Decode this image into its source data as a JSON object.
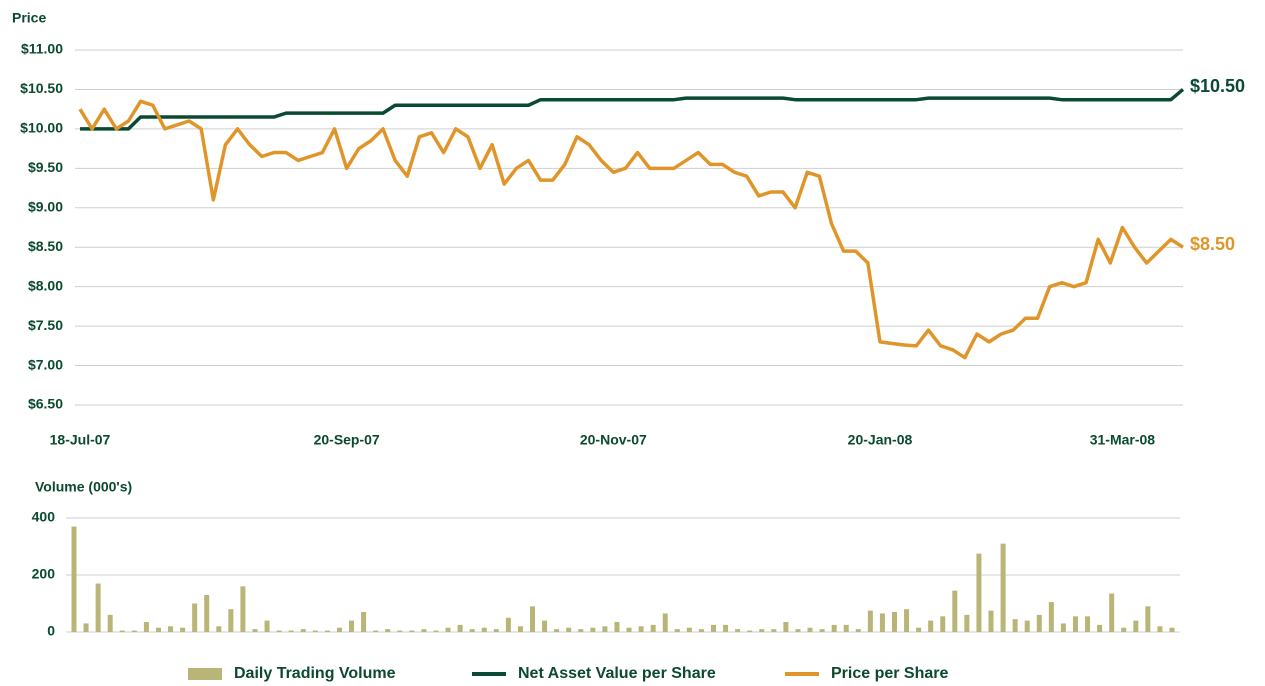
{
  "chart_data": [
    {
      "type": "line",
      "title": "Price",
      "categories": [
        "18-Jul-07",
        null,
        null,
        null,
        null,
        null,
        null,
        null,
        null,
        null,
        null,
        null,
        null,
        null,
        null,
        null,
        null,
        null,
        null,
        null,
        null,
        null,
        "20-Sep-07",
        null,
        null,
        null,
        null,
        null,
        null,
        null,
        null,
        null,
        null,
        null,
        null,
        null,
        null,
        null,
        null,
        null,
        null,
        null,
        null,
        null,
        "20-Nov-07",
        null,
        null,
        null,
        null,
        null,
        null,
        null,
        null,
        null,
        null,
        null,
        null,
        null,
        null,
        null,
        null,
        null,
        null,
        null,
        null,
        null,
        "20-Jan-08",
        null,
        null,
        null,
        null,
        null,
        null,
        null,
        null,
        null,
        null,
        null,
        null,
        null,
        null,
        null,
        null,
        null,
        null,
        null,
        "31-Mar-08",
        null,
        null,
        null,
        null,
        null
      ],
      "series": [
        {
          "name": "Net Asset Value per Share",
          "color": "#0b4a32",
          "end_label": "$10.50",
          "values": [
            10,
            10,
            10,
            10,
            10,
            10.15,
            10.15,
            10.15,
            10.15,
            10.15,
            10.15,
            10.15,
            10.15,
            10.15,
            10.15,
            10.15,
            10.15,
            10.2,
            10.2,
            10.2,
            10.2,
            10.2,
            10.2,
            10.2,
            10.2,
            10.2,
            10.3,
            10.3,
            10.3,
            10.3,
            10.3,
            10.3,
            10.3,
            10.3,
            10.3,
            10.3,
            10.3,
            10.3,
            10.37,
            10.37,
            10.37,
            10.37,
            10.37,
            10.37,
            10.37,
            10.37,
            10.37,
            10.37,
            10.37,
            10.37,
            10.39,
            10.39,
            10.39,
            10.39,
            10.39,
            10.39,
            10.39,
            10.39,
            10.39,
            10.37,
            10.37,
            10.37,
            10.37,
            10.37,
            10.37,
            10.37,
            10.37,
            10.37,
            10.37,
            10.37,
            10.39,
            10.39,
            10.39,
            10.39,
            10.39,
            10.39,
            10.39,
            10.39,
            10.39,
            10.39,
            10.39,
            10.37,
            10.37,
            10.37,
            10.37,
            10.37,
            10.37,
            10.37,
            10.37,
            10.37,
            10.37,
            10.5
          ]
        },
        {
          "name": "Price per Share",
          "color": "#e0952a",
          "end_label": "$8.50",
          "values": [
            10.25,
            10.0,
            10.25,
            10.0,
            10.1,
            10.35,
            10.3,
            10.0,
            10.05,
            10.1,
            10.0,
            9.1,
            9.8,
            10.0,
            9.8,
            9.65,
            9.7,
            9.7,
            9.6,
            9.65,
            9.7,
            10.0,
            9.5,
            9.75,
            9.85,
            10.0,
            9.6,
            9.4,
            9.9,
            9.95,
            9.7,
            10.0,
            9.9,
            9.5,
            9.8,
            9.3,
            9.5,
            9.6,
            9.35,
            9.35,
            9.55,
            9.9,
            9.8,
            9.6,
            9.45,
            9.5,
            9.7,
            9.5,
            9.5,
            9.5,
            9.6,
            9.7,
            9.55,
            9.55,
            9.45,
            9.4,
            9.15,
            9.2,
            9.2,
            9.0,
            9.45,
            9.4,
            8.8,
            8.45,
            8.45,
            8.3,
            7.3,
            7.28,
            7.26,
            7.25,
            7.45,
            7.25,
            7.2,
            7.1,
            7.4,
            7.3,
            7.4,
            7.45,
            7.6,
            7.6,
            8.0,
            8.05,
            8.0,
            8.05,
            8.6,
            8.3,
            8.75,
            8.5,
            8.3,
            8.45,
            8.6,
            8.5
          ]
        }
      ],
      "ylim": [
        6.5,
        11
      ],
      "yticks": [
        {
          "value": 6.5,
          "label": "$6.50"
        },
        {
          "value": 7,
          "label": "$7.00"
        },
        {
          "value": 7.5,
          "label": "$7.50"
        },
        {
          "value": 8,
          "label": "$8.00"
        },
        {
          "value": 8.5,
          "label": "$8.50"
        },
        {
          "value": 9,
          "label": "$9.00"
        },
        {
          "value": 9.5,
          "label": "$9.50"
        },
        {
          "value": 10,
          "label": "$10.00"
        },
        {
          "value": 10.5,
          "label": "$10.50"
        },
        {
          "value": 11,
          "label": "$11.00"
        }
      ],
      "grid": true
    },
    {
      "type": "bar",
      "title": "Volume (000's)",
      "series": [
        {
          "name": "Daily Trading Volume",
          "color": "#b8b577",
          "values": [
            370,
            30,
            170,
            60,
            5,
            5,
            35,
            15,
            20,
            15,
            100,
            130,
            20,
            80,
            160,
            10,
            40,
            5,
            5,
            10,
            5,
            5,
            15,
            40,
            70,
            5,
            10,
            5,
            5,
            10,
            5,
            15,
            25,
            10,
            15,
            10,
            50,
            20,
            90,
            40,
            10,
            15,
            10,
            15,
            20,
            35,
            15,
            20,
            25,
            65,
            10,
            15,
            10,
            25,
            25,
            10,
            5,
            10,
            10,
            35,
            10,
            15,
            10,
            25,
            25,
            10,
            75,
            65,
            70,
            80,
            15,
            40,
            55,
            145,
            60,
            275,
            75,
            310,
            45,
            40,
            60,
            105,
            30,
            55,
            55,
            25,
            135,
            15,
            40,
            90,
            20,
            15
          ]
        }
      ],
      "ylim": [
        0,
        400
      ],
      "yticks": [
        0,
        200,
        400
      ],
      "grid": true
    }
  ]
}
